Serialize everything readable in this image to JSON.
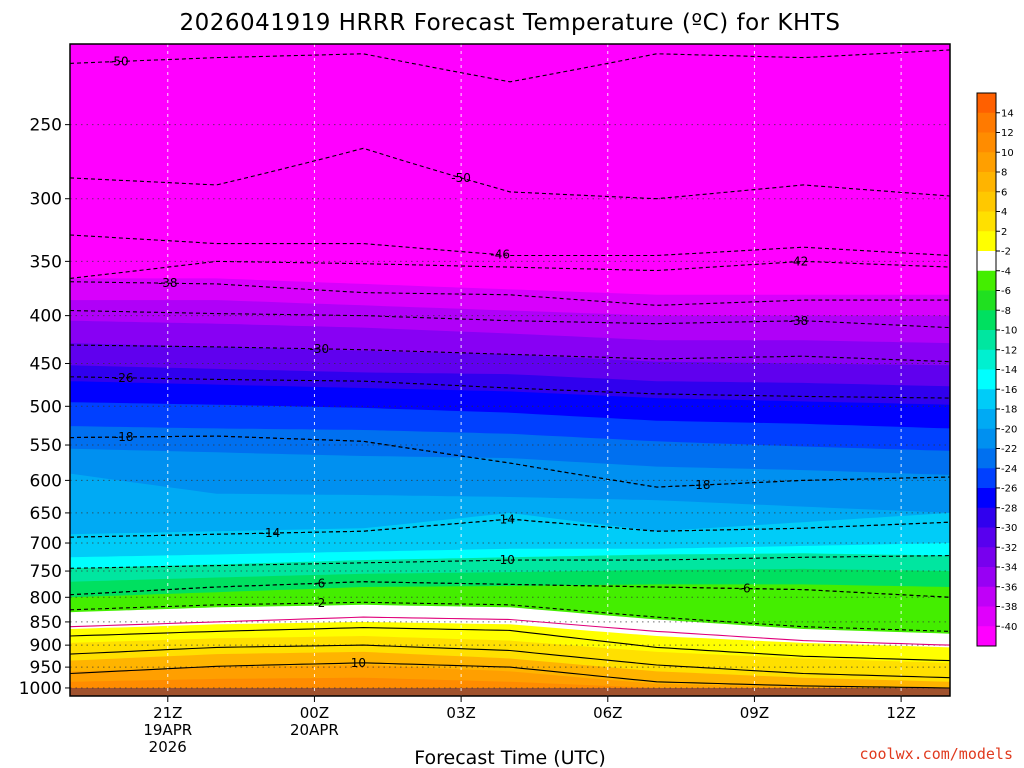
{
  "chart_data": {
    "type": "area",
    "title": "2026041919 HRRR Forecast Temperature (ºC) for KHTS",
    "xlabel": "Forecast Time (UTC)",
    "ylabel": "",
    "credit": "coolwx.com/models",
    "y_scale": "log",
    "ylim": [
      1020,
      205
    ],
    "xlim": [
      19.0,
      37.0
    ],
    "x_ticks": [
      {
        "x": 21,
        "lines": [
          "21Z",
          "19APR",
          "2026"
        ]
      },
      {
        "x": 24,
        "lines": [
          "00Z",
          "20APR"
        ]
      },
      {
        "x": 27,
        "lines": [
          "03Z"
        ]
      },
      {
        "x": 30,
        "lines": [
          "06Z"
        ]
      },
      {
        "x": 33,
        "lines": [
          "09Z"
        ]
      },
      {
        "x": 36,
        "lines": [
          "12Z"
        ]
      }
    ],
    "y_ticks": [
      250,
      300,
      350,
      400,
      450,
      500,
      550,
      600,
      650,
      700,
      750,
      800,
      850,
      900,
      950,
      1000
    ],
    "colorbar_labels": [
      "14",
      "12",
      "10",
      "8",
      "6",
      "4",
      "2",
      "-2",
      "-4",
      "-6",
      "-8",
      "-10",
      "-12",
      "-14",
      "-16",
      "-18",
      "-20",
      "-22",
      "-24",
      "-26",
      "-28",
      "-30",
      "-32",
      "-34",
      "-36",
      "-38",
      "-40"
    ],
    "colorbar_colors": [
      "#ff6000",
      "#ff7a00",
      "#ff8c00",
      "#ff9f00",
      "#ffb400",
      "#ffc800",
      "#ffe000",
      "#ffff00",
      "#ffffff",
      "#44ee00",
      "#20e020",
      "#00e060",
      "#00e6a0",
      "#00f0d0",
      "#00ffff",
      "#00ccf8",
      "#00aaf4",
      "#0090f0",
      "#0070f0",
      "#0040ff",
      "#0000ff",
      "#3000ee",
      "#5800ee",
      "#7800ee",
      "#9800f4",
      "#c000f8",
      "#e000fc",
      "#ff00ff"
    ],
    "ground_color": "#a0522d",
    "ground_top_hpa": 1000,
    "layers": [
      {
        "color": "#ff00ff",
        "top": [
          205,
          205,
          205,
          205,
          205,
          205,
          205
        ]
      },
      {
        "color": "#d800fc",
        "top": [
          365,
          365,
          370,
          375,
          380,
          380,
          380
        ]
      },
      {
        "color": "#b000f8",
        "top": [
          385,
          385,
          390,
          395,
          400,
          400,
          400
        ]
      },
      {
        "color": "#8800f4",
        "top": [
          405,
          408,
          412,
          418,
          425,
          425,
          428
        ]
      },
      {
        "color": "#6000ee",
        "top": [
          428,
          432,
          436,
          440,
          448,
          450,
          452
        ]
      },
      {
        "color": "#3000ee",
        "top": [
          452,
          456,
          460,
          462,
          470,
          472,
          476
        ]
      },
      {
        "color": "#0000ff",
        "top": [
          470,
          474,
          478,
          482,
          490,
          494,
          498
        ]
      },
      {
        "color": "#0040ff",
        "top": [
          495,
          498,
          502,
          508,
          518,
          522,
          528
        ]
      },
      {
        "color": "#0070f0",
        "top": [
          525,
          528,
          530,
          535,
          545,
          552,
          558
        ]
      },
      {
        "color": "#0090f0",
        "top": [
          555,
          560,
          565,
          568,
          580,
          585,
          592
        ]
      },
      {
        "color": "#00aaf4",
        "top": [
          590,
          620,
          622,
          625,
          630,
          640,
          650
        ]
      },
      {
        "color": "#00ccf8",
        "top": [
          685,
          680,
          675,
          650,
          680,
          665,
          650
        ]
      },
      {
        "color": "#00ffff",
        "top": [
          725,
          720,
          715,
          710,
          710,
          705,
          700
        ]
      },
      {
        "color": "#00e6a0",
        "top": [
          745,
          738,
          730,
          725,
          720,
          718,
          722
        ]
      },
      {
        "color": "#00e060",
        "top": [
          770,
          762,
          755,
          752,
          748,
          746,
          750
        ]
      },
      {
        "color": "#44ee00",
        "top": [
          800,
          790,
          780,
          778,
          775,
          775,
          780
        ]
      },
      {
        "color": "#ffffff",
        "top": [
          830,
          820,
          815,
          820,
          845,
          865,
          875
        ]
      },
      {
        "color": "#ffff00",
        "top": [
          865,
          855,
          850,
          855,
          880,
          895,
          905
        ]
      },
      {
        "color": "#ffe000",
        "top": [
          895,
          885,
          880,
          890,
          915,
          930,
          940
        ]
      },
      {
        "color": "#ffb400",
        "top": [
          935,
          920,
          915,
          930,
          960,
          975,
          985
        ]
      },
      {
        "color": "#ff9f00",
        "top": [
          960,
          950,
          945,
          960,
          990,
          998,
          1000
        ]
      },
      {
        "color": "#ff8c00",
        "top": [
          985,
          978,
          975,
          985,
          1000,
          1000,
          1000
        ]
      }
    ],
    "dashed_contours": [
      {
        "value": "-50",
        "p": [
          215,
          212,
          210,
          225,
          210,
          212,
          208
        ],
        "label_x": 20.0
      },
      {
        "value": "-50",
        "p": [
          285,
          290,
          265,
          295,
          300,
          290,
          298
        ],
        "label_x": 27.0
      },
      {
        "value": "-46",
        "p": [
          328,
          335,
          335,
          345,
          345,
          338,
          345
        ],
        "label_x": 27.8
      },
      {
        "value": "-42",
        "p": [
          365,
          350,
          352,
          355,
          358,
          350,
          355
        ],
        "label_x": 33.9
      },
      {
        "value": "-38",
        "p": [
          368,
          370,
          378,
          380,
          390,
          385,
          385
        ],
        "label_x": 21.0
      },
      {
        "value": "-38",
        "p": [
          395,
          398,
          400,
          405,
          408,
          405,
          412
        ],
        "label_x": 33.9
      },
      {
        "value": "-30",
        "p": [
          430,
          432,
          435,
          440,
          445,
          442,
          448
        ],
        "label_x": 24.1
      },
      {
        "value": "-26",
        "p": [
          465,
          468,
          470,
          478,
          485,
          488,
          490
        ],
        "label_x": 20.1
      },
      {
        "value": "-18",
        "p": [
          540,
          538,
          545,
          575,
          610,
          600,
          595
        ],
        "label_x": 20.1
      },
      {
        "value": "-18",
        "p": [
          540,
          538,
          545,
          575,
          610,
          600,
          595
        ],
        "label_x": 31.9
      },
      {
        "value": "-14",
        "p": [
          690,
          685,
          680,
          660,
          680,
          675,
          665
        ],
        "label_x": 23.1
      },
      {
        "value": "-14",
        "p": [
          690,
          685,
          680,
          660,
          680,
          675,
          665
        ],
        "label_x": 27.9
      },
      {
        "value": "-10",
        "p": [
          745,
          740,
          735,
          730,
          730,
          725,
          722
        ],
        "label_x": 27.9
      },
      {
        "value": "-6",
        "p": [
          795,
          780,
          770,
          775,
          780,
          785,
          800
        ],
        "label_x": 24.1
      },
      {
        "value": "-6",
        "p": [
          795,
          780,
          770,
          775,
          780,
          785,
          800
        ],
        "label_x": 32.8
      },
      {
        "value": "-2",
        "p": [
          825,
          815,
          810,
          815,
          840,
          860,
          870
        ],
        "label_x": 24.1
      }
    ],
    "solid_contours": [
      {
        "value": "2",
        "p": [
          860,
          850,
          840,
          845,
          870,
          890,
          900
        ],
        "color": "#e0007a"
      },
      {
        "value": "6",
        "p": [
          880,
          870,
          862,
          868,
          905,
          925,
          935
        ],
        "color": "#000000"
      },
      {
        "value": "",
        "p": [
          920,
          905,
          900,
          912,
          945,
          965,
          975
        ],
        "color": "#000000"
      },
      {
        "value": "10",
        "p": [
          965,
          948,
          940,
          950,
          985,
          995,
          1000
        ],
        "color": "#000000",
        "label_x": 24.9
      }
    ],
    "t": [
      19,
      22,
      25,
      28,
      31,
      34,
      37
    ]
  }
}
